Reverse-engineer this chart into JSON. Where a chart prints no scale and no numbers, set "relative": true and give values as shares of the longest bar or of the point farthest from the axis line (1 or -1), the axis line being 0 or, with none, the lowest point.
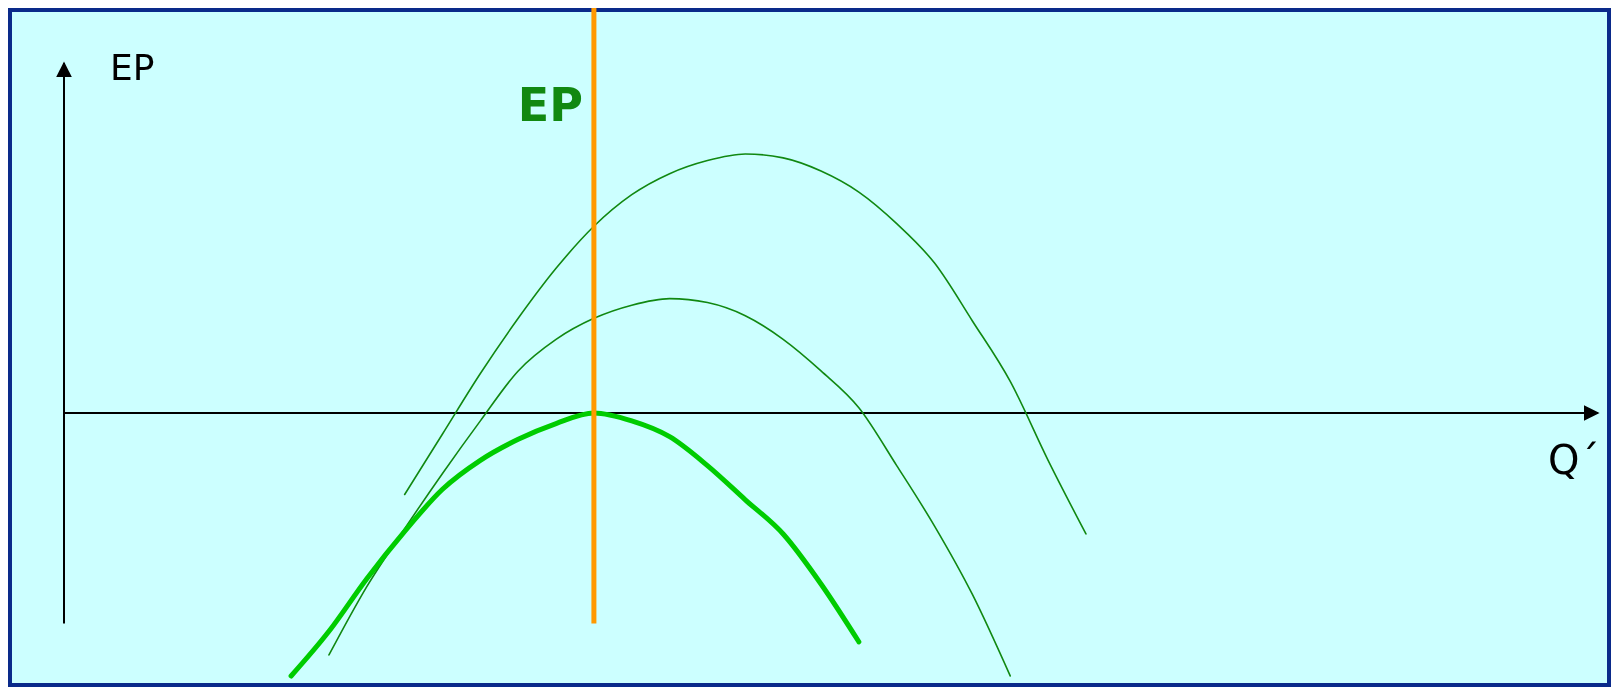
{
  "chart_data": {
    "type": "line",
    "relative": true,
    "xlabel": "Q´",
    "ylabel": "EP",
    "categories": [
      null,
      null,
      null,
      null,
      null,
      null,
      null,
      null,
      null,
      null,
      null,
      null,
      null,
      null,
      null,
      null,
      null,
      null,
      null,
      null,
      null,
      null,
      null,
      null,
      null,
      null,
      null,
      null,
      null,
      null,
      null,
      null,
      null,
      null,
      null,
      null,
      null,
      null,
      null,
      null,
      null
    ],
    "series": [
      {
        "color": "#118811",
        "values": [
          null,
          null,
          null,
          null,
          null,
          null,
          null,
          null,
          null,
          -0.31,
          -0.08,
          0.15,
          0.36,
          0.55,
          0.71,
          0.83,
          0.91,
          0.96,
          0.985,
          0.97,
          0.92,
          0.84,
          0.72,
          0.57,
          0.35,
          0.12,
          -0.18,
          -0.46,
          null,
          null,
          null,
          null,
          null,
          null,
          null,
          null,
          null,
          null,
          null,
          null,
          null
        ]
      },
      {
        "color": "#118811",
        "values": [
          null,
          null,
          null,
          null,
          null,
          null,
          null,
          -0.92,
          -0.66,
          -0.44,
          -0.23,
          -0.03,
          0.16,
          0.28,
          0.36,
          0.41,
          0.435,
          0.42,
          0.37,
          0.28,
          0.16,
          0.02,
          -0.2,
          -0.43,
          -0.69,
          -1.0,
          null,
          null,
          null,
          null,
          null,
          null,
          null,
          null,
          null,
          null,
          null,
          null,
          null,
          null,
          null
        ]
      },
      {
        "color": "#00cc00",
        "values": [
          null,
          null,
          null,
          null,
          null,
          null,
          -1.0,
          -0.83,
          -0.63,
          -0.45,
          -0.29,
          -0.18,
          -0.1,
          -0.04,
          0.0,
          -0.03,
          -0.09,
          -0.2,
          -0.33,
          -0.46,
          -0.65,
          -0.87,
          null,
          null,
          null,
          null,
          null,
          null,
          null,
          null,
          null,
          null,
          null,
          null,
          null,
          null,
          null,
          null,
          null,
          null,
          null
        ]
      }
    ],
    "annotations": [
      "EP"
    ],
    "marker": "none",
    "line_style": "solid"
  }
}
